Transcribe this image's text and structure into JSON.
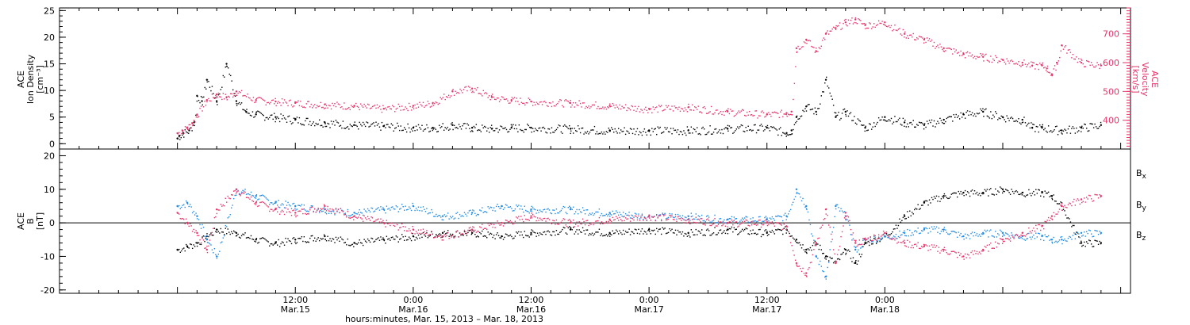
{
  "chart_data": [
    {
      "type": "scatter",
      "panel": "top",
      "ylabel": [
        "ACE",
        "Ion Density",
        "[cm⁻³]"
      ],
      "ylabel_right": [
        "ACE",
        "Velocity",
        "[km/s]"
      ],
      "y_ticks": [
        "0",
        "5",
        "10",
        "15",
        "20",
        "25"
      ],
      "y_right_ticks": [
        "400",
        "500",
        "600",
        "700"
      ],
      "ylim": [
        -1,
        25.5
      ],
      "ylim_right": [
        300,
        790
      ],
      "series": [
        {
          "color": "#000000",
          "x": [
            0.0,
            0.2,
            0.6,
            1.2,
            1.7,
            2.0,
            2.5,
            3.0,
            4.0,
            5.0,
            6.0,
            7.0,
            8.0,
            10.0,
            12.0,
            15.0,
            18.0,
            21.0,
            24.0,
            26.0,
            28.0,
            30.0,
            32.0,
            34.0,
            36.0,
            40.0,
            44.0,
            48.0,
            52.0,
            56.0,
            60.0,
            62.0,
            62.5,
            63.0,
            64.0,
            65.0,
            66.0,
            67.0,
            68.0,
            70.0,
            72.0,
            74.0,
            76.0,
            78.0,
            80.0,
            82.0,
            84.0,
            86.0,
            87.0,
            88.0,
            90.0,
            92.0,
            94.0
          ],
          "y": [
            1.0,
            1.5,
            2.0,
            2.5,
            4.0,
            9.0,
            8.0,
            12.0,
            8.0,
            15.0,
            8.0,
            6.0,
            5.5,
            5.0,
            4.5,
            4.0,
            3.5,
            3.3,
            3.0,
            3.0,
            3.5,
            3.0,
            2.8,
            3.0,
            3.0,
            2.8,
            2.5,
            2.5,
            2.5,
            2.8,
            3.0,
            2.0,
            2.5,
            5.0,
            7.0,
            6.0,
            12.0,
            5.0,
            6.0,
            3.0,
            5.0,
            4.0,
            3.5,
            4.5,
            5.5,
            6.0,
            5.0,
            4.5,
            3.0,
            3.0,
            2.5,
            3.0,
            3.5
          ]
        },
        {
          "color": "#e8336a",
          "axis": "right",
          "x": [
            0.0,
            0.5,
            1.0,
            1.5,
            2.0,
            3.0,
            4.0,
            5.0,
            6.0,
            8.0,
            10.0,
            12.0,
            15.0,
            18.0,
            21.0,
            24.0,
            26.0,
            28.0,
            30.0,
            32.0,
            34.0,
            36.0,
            40.0,
            44.0,
            48.0,
            52.0,
            56.0,
            60.0,
            62.0,
            62.5,
            63.0,
            64.0,
            65.0,
            66.0,
            67.0,
            68.0,
            69.0,
            70.0,
            72.0,
            74.0,
            76.0,
            78.0,
            80.0,
            82.0,
            84.0,
            86.0,
            87.0,
            88.0,
            88.5,
            89.0,
            89.5,
            90.0,
            92.0,
            94.0
          ],
          "y": [
            355,
            365,
            375,
            390,
            420,
            470,
            490,
            480,
            500,
            470,
            465,
            460,
            455,
            450,
            440,
            450,
            460,
            500,
            510,
            480,
            470,
            465,
            460,
            450,
            440,
            445,
            430,
            420,
            425,
            430,
            650,
            680,
            640,
            700,
            720,
            740,
            750,
            730,
            740,
            700,
            680,
            650,
            630,
            620,
            610,
            600,
            590,
            590,
            580,
            560,
            600,
            660,
            600,
            590
          ]
        }
      ]
    },
    {
      "type": "scatter",
      "panel": "bottom",
      "ylabel": [
        "ACE",
        "B",
        "[nT]"
      ],
      "y_ticks": [
        "-20",
        "-10",
        "0",
        "10",
        "20"
      ],
      "ylim": [
        -21,
        22
      ],
      "legend": [
        "Bx",
        "By",
        "Bz"
      ],
      "legend_position": "right",
      "series": [
        {
          "name": "Bx",
          "color": "#000000",
          "x": [
            0.0,
            1.0,
            2.0,
            3.0,
            4.0,
            6.0,
            8.0,
            10.0,
            12.0,
            15.0,
            18.0,
            21.0,
            24.0,
            27.0,
            30.0,
            33.0,
            36.0,
            40.0,
            44.0,
            48.0,
            52.0,
            56.0,
            60.0,
            62.0,
            63.0,
            64.0,
            65.0,
            66.0,
            67.0,
            68.0,
            69.0,
            70.0,
            72.0,
            74.0,
            76.0,
            78.0,
            80.0,
            82.0,
            84.0,
            86.0,
            88.0,
            89.0,
            90.0,
            92.0,
            94.0
          ],
          "y": [
            -8,
            -7,
            -6,
            -4,
            -2,
            -3,
            -5,
            -6,
            -5,
            -4,
            -6,
            -5,
            -4,
            -3,
            -3,
            -4,
            -3,
            -2,
            -3,
            -2,
            -3,
            -2,
            -3,
            -2,
            -5,
            -8,
            -6,
            -10,
            -12,
            -8,
            -12,
            -6,
            -4,
            2,
            6,
            8,
            9,
            9,
            10,
            9,
            9,
            8,
            5,
            -6,
            -6
          ]
        },
        {
          "name": "By",
          "color": "#1f8ae8",
          "x": [
            0.0,
            1.0,
            2.0,
            3.0,
            4.0,
            6.0,
            8.0,
            10.0,
            12.0,
            15.0,
            18.0,
            21.0,
            24.0,
            27.0,
            30.0,
            33.0,
            36.0,
            40.0,
            44.0,
            48.0,
            52.0,
            56.0,
            60.0,
            62.0,
            63.0,
            64.0,
            65.0,
            66.0,
            67.0,
            68.0,
            69.0,
            70.0,
            72.0,
            74.0,
            76.0,
            78.0,
            80.0,
            82.0,
            84.0,
            86.0,
            88.0,
            89.0,
            90.0,
            92.0,
            94.0
          ],
          "y": [
            5,
            6,
            2,
            -5,
            -10,
            10,
            8,
            6,
            5,
            4,
            3,
            4,
            5,
            2,
            3,
            5,
            4,
            4,
            3,
            2,
            2,
            1,
            1,
            2,
            10,
            5,
            -10,
            -16,
            5,
            2,
            -8,
            -5,
            -4,
            -3,
            -2,
            -2,
            -4,
            -3,
            -3,
            -4,
            -4,
            -5,
            -5,
            -3,
            -3
          ]
        },
        {
          "name": "Bz",
          "color": "#e8336a",
          "x": [
            0.0,
            1.0,
            2.0,
            3.0,
            4.0,
            6.0,
            8.0,
            10.0,
            12.0,
            15.0,
            18.0,
            21.0,
            24.0,
            27.0,
            30.0,
            33.0,
            36.0,
            40.0,
            44.0,
            48.0,
            52.0,
            56.0,
            60.0,
            62.0,
            63.0,
            64.0,
            65.0,
            66.0,
            67.0,
            68.0,
            69.0,
            70.0,
            72.0,
            74.0,
            76.0,
            78.0,
            80.0,
            82.0,
            84.0,
            86.0,
            88.0,
            89.0,
            90.0,
            92.0,
            94.0
          ],
          "y": [
            3,
            0,
            -3,
            -8,
            4,
            10,
            6,
            4,
            3,
            5,
            2,
            0,
            -2,
            -4,
            -2,
            0,
            2,
            0,
            1,
            2,
            1,
            0,
            0,
            -1,
            -12,
            -15,
            -6,
            4,
            -12,
            3,
            -6,
            -5,
            -3,
            -6,
            -7,
            -8,
            -10,
            -8,
            -5,
            -3,
            -1,
            2,
            5,
            7,
            8
          ]
        }
      ]
    }
  ],
  "x_axis": {
    "tick_labels": [
      {
        "h": 12,
        "time": "12:00",
        "day": "Mar.15"
      },
      {
        "h": 24,
        "time": "0:00",
        "day": "Mar.16"
      },
      {
        "h": 36,
        "time": "12:00",
        "day": "Mar.16"
      },
      {
        "h": 48,
        "time": "0:00",
        "day": "Mar.17"
      },
      {
        "h": 60,
        "time": "12:00",
        "day": "Mar.17"
      },
      {
        "h": 72,
        "time": "0:00",
        "day": "Mar.18"
      }
    ],
    "title": "hours:minutes, Mar. 15, 2013 – Mar. 18, 2013",
    "xlim": [
      -12,
      97
    ]
  },
  "legend_labels": {
    "bx": "Bx",
    "by": "By",
    "bz": "Bz"
  }
}
